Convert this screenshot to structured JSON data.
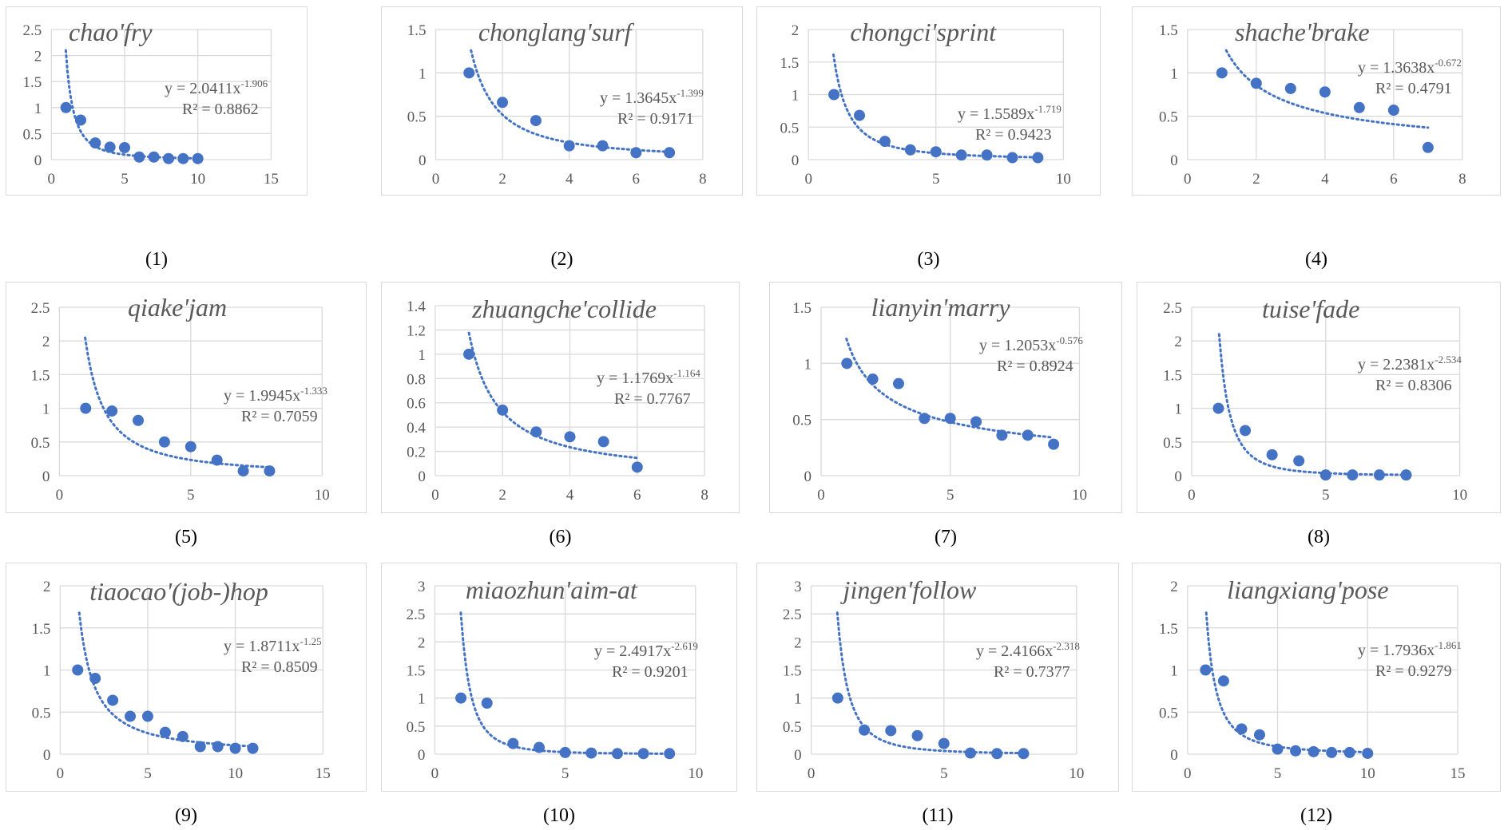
{
  "chart_data": [
    {
      "type": "scatter",
      "title": "chao'fry",
      "caption": "(1)",
      "x": [
        1,
        2,
        3,
        4,
        5,
        6,
        7,
        8,
        9,
        10
      ],
      "y": [
        1,
        0.76,
        0.32,
        0.24,
        0.23,
        0.05,
        0.05,
        0.02,
        0.02,
        0.02
      ],
      "xlim": [
        0,
        15
      ],
      "ylim": [
        0,
        2.5
      ],
      "xticks": [
        0,
        5,
        10,
        15
      ],
      "yticks": [
        0,
        0.5,
        1,
        1.5,
        2,
        2.5
      ],
      "trend": {
        "type": "power",
        "a": 2.0411,
        "b": -1.906
      },
      "eq_base": "y = 2.0411x",
      "eq_exp": "-1.906",
      "r2_label": "R² = 0.8862",
      "grid": true,
      "marker_color": "#4472C4"
    },
    {
      "type": "scatter",
      "title": "chonglang'surf",
      "caption": "(2)",
      "x": [
        1,
        2,
        3,
        4,
        5,
        6,
        7
      ],
      "y": [
        1,
        0.66,
        0.45,
        0.16,
        0.16,
        0.08,
        0.08
      ],
      "xlim": [
        0,
        8
      ],
      "ylim": [
        0,
        1.5
      ],
      "xticks": [
        0,
        2,
        4,
        6,
        8
      ],
      "yticks": [
        0,
        0.5,
        1,
        1.5
      ],
      "trend": {
        "type": "power",
        "a": 1.3645,
        "b": -1.399
      },
      "eq_base": "y = 1.3645x",
      "eq_exp": "-1.399",
      "r2_label": "R² = 0.9171",
      "grid": true,
      "marker_color": "#4472C4"
    },
    {
      "type": "scatter",
      "title": "chongci'sprint",
      "caption": "(3)",
      "x": [
        1,
        2,
        3,
        4,
        5,
        6,
        7,
        8,
        9
      ],
      "y": [
        1,
        0.68,
        0.28,
        0.15,
        0.12,
        0.07,
        0.07,
        0.03,
        0.03
      ],
      "xlim": [
        0,
        10
      ],
      "ylim": [
        0,
        2
      ],
      "xticks": [
        0,
        5,
        10
      ],
      "yticks": [
        0,
        0.5,
        1,
        1.5,
        2
      ],
      "trend": {
        "type": "power",
        "a": 1.5589,
        "b": -1.719
      },
      "eq_base": "y = 1.5589x",
      "eq_exp": "-1.719",
      "r2_label": "R² = 0.9423",
      "grid": true,
      "marker_color": "#4472C4"
    },
    {
      "type": "scatter",
      "title": "shache'brake",
      "caption": "(4)",
      "x": [
        1,
        2,
        3,
        4,
        5,
        6,
        7
      ],
      "y": [
        1,
        0.88,
        0.82,
        0.78,
        0.6,
        0.57,
        0.14
      ],
      "xlim": [
        0,
        8
      ],
      "ylim": [
        0,
        1.5
      ],
      "xticks": [
        0,
        2,
        4,
        6,
        8
      ],
      "yticks": [
        0,
        0.5,
        1,
        1.5
      ],
      "trend": {
        "type": "power",
        "a": 1.3638,
        "b": -0.672
      },
      "eq_base": "y = 1.3638x",
      "eq_exp": "-0.672",
      "r2_label": "R² = 0.4791",
      "grid": true,
      "marker_color": "#4472C4"
    },
    {
      "type": "scatter",
      "title": "qiake'jam",
      "caption": "(5)",
      "x": [
        1,
        2,
        3,
        4,
        5,
        6,
        7,
        8
      ],
      "y": [
        1,
        0.96,
        0.82,
        0.5,
        0.43,
        0.23,
        0.07,
        0.07
      ],
      "xlim": [
        0,
        10
      ],
      "ylim": [
        0,
        2.5
      ],
      "xticks": [
        0,
        5,
        10
      ],
      "yticks": [
        0,
        0.5,
        1,
        1.5,
        2,
        2.5
      ],
      "trend": {
        "type": "power",
        "a": 1.9945,
        "b": -1.333
      },
      "eq_base": "y = 1.9945x",
      "eq_exp": "-1.333",
      "r2_label": "R² = 0.7059",
      "grid": true,
      "marker_color": "#4472C4"
    },
    {
      "type": "scatter",
      "title": "zhuangche'collide",
      "caption": "(6)",
      "x": [
        1,
        2,
        3,
        4,
        5,
        6
      ],
      "y": [
        1,
        0.54,
        0.36,
        0.32,
        0.28,
        0.07
      ],
      "xlim": [
        0,
        8
      ],
      "ylim": [
        0,
        1.4
      ],
      "xticks": [
        0,
        2,
        4,
        6,
        8
      ],
      "yticks": [
        0,
        0.2,
        0.4,
        0.6,
        0.8,
        1,
        1.2,
        1.4
      ],
      "trend": {
        "type": "power",
        "a": 1.1769,
        "b": -1.164
      },
      "eq_base": "y = 1.1769x",
      "eq_exp": "-1.164",
      "r2_label": "R² = 0.7767",
      "grid": true,
      "marker_color": "#4472C4"
    },
    {
      "type": "scatter",
      "title": "lianyin'marry",
      "caption": "(7)",
      "x": [
        1,
        2,
        3,
        4,
        5,
        6,
        7,
        8,
        9
      ],
      "y": [
        1,
        0.86,
        0.82,
        0.51,
        0.51,
        0.48,
        0.36,
        0.36,
        0.28
      ],
      "xlim": [
        0,
        10
      ],
      "ylim": [
        0,
        1.5
      ],
      "xticks": [
        0,
        5,
        10
      ],
      "yticks": [
        0,
        0.5,
        1,
        1.5
      ],
      "trend": {
        "type": "power",
        "a": 1.2053,
        "b": -0.576
      },
      "eq_base": "y = 1.2053x",
      "eq_exp": "-0.576",
      "r2_label": "R² = 0.8924",
      "grid": true,
      "marker_color": "#4472C4"
    },
    {
      "type": "scatter",
      "title": "tuise'fade",
      "caption": "(8)",
      "x": [
        1,
        2,
        3,
        4,
        5,
        6,
        7,
        8
      ],
      "y": [
        1,
        0.67,
        0.31,
        0.22,
        0.01,
        0.01,
        0.01,
        0.01
      ],
      "xlim": [
        0,
        10
      ],
      "ylim": [
        0,
        2.5
      ],
      "xticks": [
        0,
        5,
        10
      ],
      "yticks": [
        0,
        0.5,
        1,
        1.5,
        2,
        2.5
      ],
      "trend": {
        "type": "power",
        "a": 2.2381,
        "b": -2.534
      },
      "eq_base": "y = 2.2381x",
      "eq_exp": "-2.534",
      "r2_label": "R² = 0.8306",
      "grid": true,
      "marker_color": "#4472C4"
    },
    {
      "type": "scatter",
      "title": "tiaocao'(job-)hop",
      "caption": "(9)",
      "x": [
        1,
        2,
        3,
        4,
        5,
        6,
        7,
        8,
        9,
        10,
        11
      ],
      "y": [
        1,
        0.9,
        0.64,
        0.45,
        0.45,
        0.26,
        0.21,
        0.09,
        0.09,
        0.07,
        0.07
      ],
      "xlim": [
        0,
        15
      ],
      "ylim": [
        0,
        2
      ],
      "xticks": [
        0,
        5,
        10,
        15
      ],
      "yticks": [
        0,
        0.5,
        1,
        1.5,
        2
      ],
      "trend": {
        "type": "power",
        "a": 1.8711,
        "b": -1.25
      },
      "eq_base": "y = 1.8711x",
      "eq_exp": "-1.25",
      "r2_label": "R² = 0.8509",
      "grid": true,
      "marker_color": "#4472C4"
    },
    {
      "type": "scatter",
      "title": "miaozhun'aim-at",
      "caption": "(10)",
      "x": [
        1,
        2,
        3,
        4,
        5,
        6,
        7,
        8,
        9
      ],
      "y": [
        1,
        0.91,
        0.19,
        0.12,
        0.03,
        0.02,
        0.01,
        0.01,
        0.01
      ],
      "xlim": [
        0,
        10
      ],
      "ylim": [
        0,
        3
      ],
      "xticks": [
        0,
        5,
        10
      ],
      "yticks": [
        0,
        0.5,
        1,
        1.5,
        2,
        2.5,
        3
      ],
      "trend": {
        "type": "power",
        "a": 2.4917,
        "b": -2.619
      },
      "eq_base": "y = 2.4917x",
      "eq_exp": "-2.619",
      "r2_label": "R² = 0.9201",
      "grid": true,
      "marker_color": "#4472C4"
    },
    {
      "type": "scatter",
      "title": "jingen'follow",
      "caption": "(11)",
      "x": [
        1,
        2,
        3,
        4,
        5,
        6,
        7,
        8
      ],
      "y": [
        1,
        0.43,
        0.42,
        0.33,
        0.19,
        0.02,
        0.01,
        0.01
      ],
      "xlim": [
        0,
        10
      ],
      "ylim": [
        0,
        3
      ],
      "xticks": [
        0,
        5,
        10
      ],
      "yticks": [
        0,
        0.5,
        1,
        1.5,
        2,
        2.5,
        3
      ],
      "trend": {
        "type": "power",
        "a": 2.4166,
        "b": -2.318
      },
      "eq_base": "y = 2.4166x",
      "eq_exp": "-2.318",
      "r2_label": "R² = 0.7377",
      "grid": true,
      "marker_color": "#4472C4"
    },
    {
      "type": "scatter",
      "title": "liangxiang'pose",
      "caption": "(12)",
      "x": [
        1,
        2,
        3,
        4,
        5,
        6,
        7,
        8,
        9,
        10
      ],
      "y": [
        1,
        0.87,
        0.3,
        0.23,
        0.06,
        0.04,
        0.03,
        0.02,
        0.02,
        0.01
      ],
      "xlim": [
        0,
        15
      ],
      "ylim": [
        0,
        2
      ],
      "xticks": [
        0,
        5,
        10,
        15
      ],
      "yticks": [
        0,
        0.5,
        1,
        1.5,
        2
      ],
      "trend": {
        "type": "power",
        "a": 1.7936,
        "b": -1.861
      },
      "eq_base": "y = 1.7936x",
      "eq_exp": "-1.861",
      "r2_label": "R² = 0.9279",
      "grid": true,
      "marker_color": "#4472C4"
    }
  ]
}
